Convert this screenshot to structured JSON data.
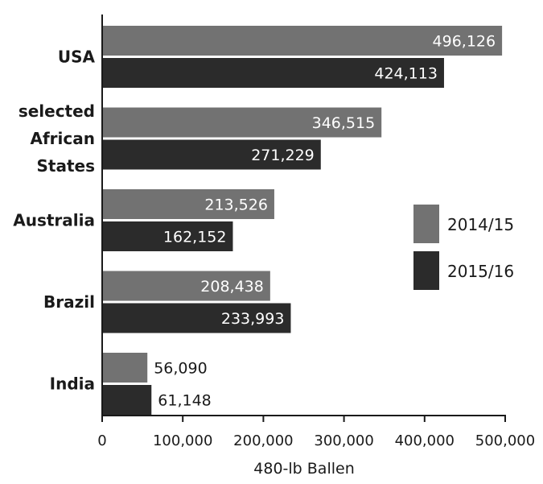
{
  "chart_data": {
    "type": "bar",
    "orientation": "horizontal",
    "categories": [
      "USA",
      "selected African States",
      "Australia",
      "Brazil",
      "India"
    ],
    "category_lines": [
      [
        "USA"
      ],
      [
        "selected",
        "African",
        "States"
      ],
      [
        "Australia"
      ],
      [
        "Brazil"
      ],
      [
        "India"
      ]
    ],
    "series": [
      {
        "name": "2014/15",
        "color": "#727272",
        "values": [
          496126,
          346515,
          213526,
          208438,
          56090
        ]
      },
      {
        "name": "2015/16",
        "color": "#2b2b2b",
        "values": [
          424113,
          271229,
          162152,
          233993,
          61148
        ]
      }
    ],
    "value_labels": [
      [
        "496,126",
        "346,515",
        "213,526",
        "208,438",
        "56,090"
      ],
      [
        "424,113",
        "271,229",
        "162,152",
        "233,993",
        "61,148"
      ]
    ],
    "xlabel": "480-lb Ballen",
    "xlim": [
      0,
      500000
    ],
    "xticks": [
      0,
      100000,
      200000,
      300000,
      400000,
      500000
    ],
    "xtick_labels": [
      "0",
      "100,000",
      "200,000",
      "300,000",
      "400,000",
      "500,000"
    ],
    "grid": false,
    "legend_position": "right"
  }
}
